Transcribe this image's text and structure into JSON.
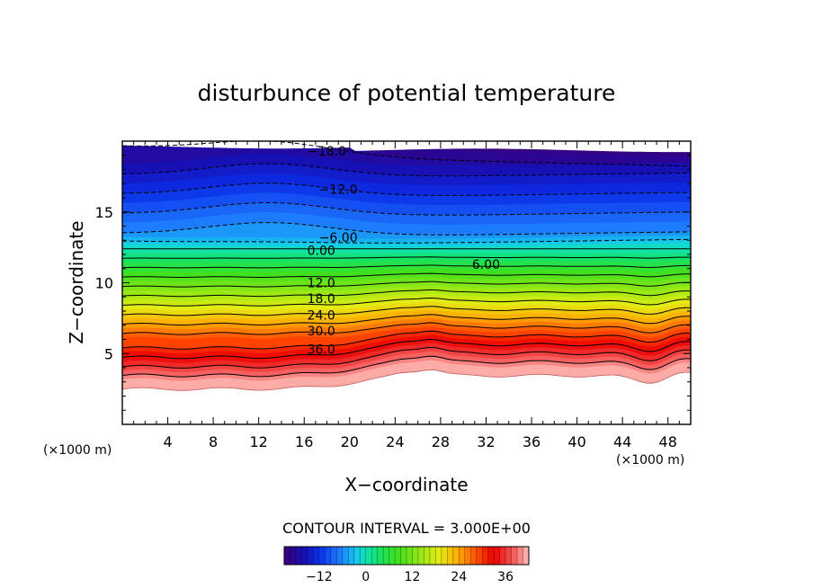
{
  "chart_data": {
    "type": "contour",
    "title": "disturbunce of potential temperature",
    "xlabel": "X−coordinate",
    "ylabel": "Z−coordinate",
    "x_unit_left": "(×1000 m)",
    "x_unit_right": "(×1000 m)",
    "xlim": [
      0,
      50
    ],
    "ylim": [
      0,
      20
    ],
    "x_ticks": [
      "4",
      "8",
      "12",
      "16",
      "20",
      "24",
      "28",
      "32",
      "36",
      "40",
      "44",
      "48"
    ],
    "y_ticks": [
      "5",
      "10",
      "15"
    ],
    "contour_interval_text": "CONTOUR INTERVAL = 3.000E+00",
    "contour_interval": 3.0,
    "contour_labels": [
      {
        "text": "−18.0",
        "x": 18,
        "z": 19.3
      },
      {
        "text": "−12.0",
        "x": 19,
        "z": 16.6
      },
      {
        "text": "−6.00",
        "x": 19,
        "z": 13.2
      },
      {
        "text": "0.00",
        "x": 17.5,
        "z": 12.3
      },
      {
        "text": "6.00",
        "x": 32,
        "z": 11.3
      },
      {
        "text": "12.0",
        "x": 17.5,
        "z": 10.0
      },
      {
        "text": "18.0",
        "x": 17.5,
        "z": 8.9
      },
      {
        "text": "24.0",
        "x": 17.5,
        "z": 7.7
      },
      {
        "text": "30.0",
        "x": 17.5,
        "z": 6.6
      },
      {
        "text": "36.0",
        "x": 17.5,
        "z": 5.3
      }
    ],
    "colorbar": {
      "min": -21,
      "max": 42,
      "tick_values": [
        -12,
        0,
        12,
        24,
        36
      ],
      "tick_labels": [
        "−12",
        "0",
        "12",
        "24",
        "36"
      ]
    }
  }
}
